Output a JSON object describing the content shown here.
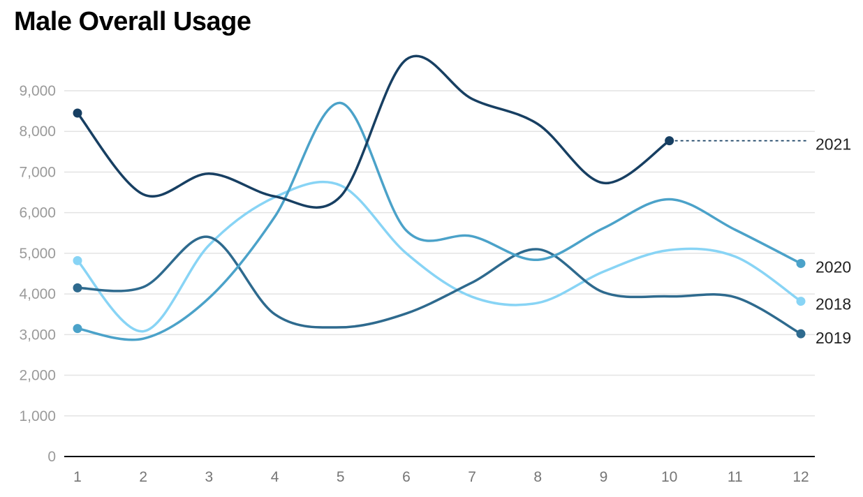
{
  "chart_data": {
    "type": "line",
    "title": "Male Overall Usage",
    "xlabel": "",
    "ylabel": "",
    "x": [
      1,
      2,
      3,
      4,
      5,
      6,
      7,
      8,
      9,
      10,
      11,
      12
    ],
    "x_tick_labels": [
      "1",
      "2",
      "3",
      "4",
      "5",
      "6",
      "7",
      "8",
      "9",
      "10",
      "11",
      "12"
    ],
    "ylim": [
      0,
      9500
    ],
    "y_ticks": [
      0,
      1000,
      2000,
      3000,
      4000,
      5000,
      6000,
      7000,
      8000,
      9000
    ],
    "y_tick_labels": [
      "0",
      "1,000",
      "2,000",
      "3,000",
      "4,000",
      "5,000",
      "6,000",
      "7,000",
      "8,000",
      "9,000"
    ],
    "grid": true,
    "legend": "direct labels at right end of lines",
    "series": [
      {
        "name": "2018",
        "color": "#88d4f5",
        "values": [
          4820,
          3080,
          5200,
          6380,
          6670,
          5000,
          3930,
          3780,
          4550,
          5080,
          4920,
          3820
        ]
      },
      {
        "name": "2019",
        "color": "#2e6a8e",
        "values": [
          4150,
          4170,
          5400,
          3500,
          3180,
          3520,
          4280,
          5100,
          4040,
          3940,
          3920,
          3020
        ]
      },
      {
        "name": "2020",
        "color": "#4ba2c9",
        "values": [
          3150,
          2900,
          3900,
          5900,
          8700,
          5560,
          5420,
          4840,
          5620,
          6330,
          5580,
          4750
        ]
      },
      {
        "name": "2021",
        "color": "#173f62",
        "values": [
          8450,
          6450,
          6960,
          6400,
          6400,
          9770,
          8800,
          8180,
          6730,
          7770,
          null,
          null
        ],
        "extension_to_end": true
      }
    ]
  }
}
